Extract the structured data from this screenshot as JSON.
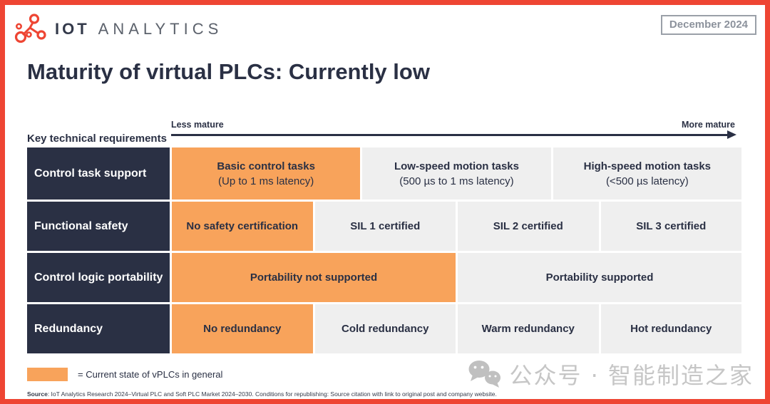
{
  "header": {
    "brand_bold": "IOT",
    "brand_light": "ANALYTICS",
    "date_badge": "December 2024"
  },
  "title": "Maturity of virtual PLCs: Currently low",
  "chart_data": {
    "type": "table",
    "title": "Maturity of virtual PLCs: Currently low",
    "row_header": "Key technical requirements",
    "axis_left_label": "Less mature",
    "axis_right_label": "More mature",
    "highlight_meaning": "Current state of vPLCs in general",
    "rows": [
      {
        "label": "Control task support",
        "cells": [
          {
            "main": "Basic control tasks",
            "sub": "(Up to 1 ms latency)",
            "highlight": true
          },
          {
            "main": "Low-speed motion tasks",
            "sub": "(500 µs to 1 ms latency)",
            "highlight": false
          },
          {
            "main": "High-speed motion tasks",
            "sub": "(<500 µs latency)",
            "highlight": false
          }
        ]
      },
      {
        "label": "Functional safety",
        "cells": [
          {
            "main": "No safety certification",
            "sub": null,
            "highlight": true
          },
          {
            "main": "SIL 1 certified",
            "sub": null,
            "highlight": false
          },
          {
            "main": "SIL 2 certified",
            "sub": null,
            "highlight": false
          },
          {
            "main": "SIL 3 certified",
            "sub": null,
            "highlight": false
          }
        ]
      },
      {
        "label": "Control logic portability",
        "cells": [
          {
            "main": "Portability not supported",
            "sub": null,
            "highlight": true
          },
          {
            "main": "Portability supported",
            "sub": null,
            "highlight": false
          }
        ]
      },
      {
        "label": "Redundancy",
        "cells": [
          {
            "main": "No redundancy",
            "sub": null,
            "highlight": true
          },
          {
            "main": "Cold redundancy",
            "sub": null,
            "highlight": false
          },
          {
            "main": "Warm redundancy",
            "sub": null,
            "highlight": false
          },
          {
            "main": "Hot redundancy",
            "sub": null,
            "highlight": false
          }
        ]
      }
    ]
  },
  "legend": {
    "text": "= Current state of vPLCs in general"
  },
  "source": {
    "label": "Source",
    "text": ": IoT Analytics Research 2024–Virtual PLC and Soft PLC Market 2024–2030. Conditions for republishing: Source citation with link to original post and company website."
  },
  "watermark": {
    "text": "公众号 · 智能制造之家"
  },
  "colors": {
    "accent_red": "#EE4533",
    "navy": "#2A3044",
    "highlight_orange": "#F8A35B",
    "cell_gray": "#EFEFEF",
    "badge_gray": "#8C929C",
    "watermark_gray": "#C6C6C6"
  }
}
